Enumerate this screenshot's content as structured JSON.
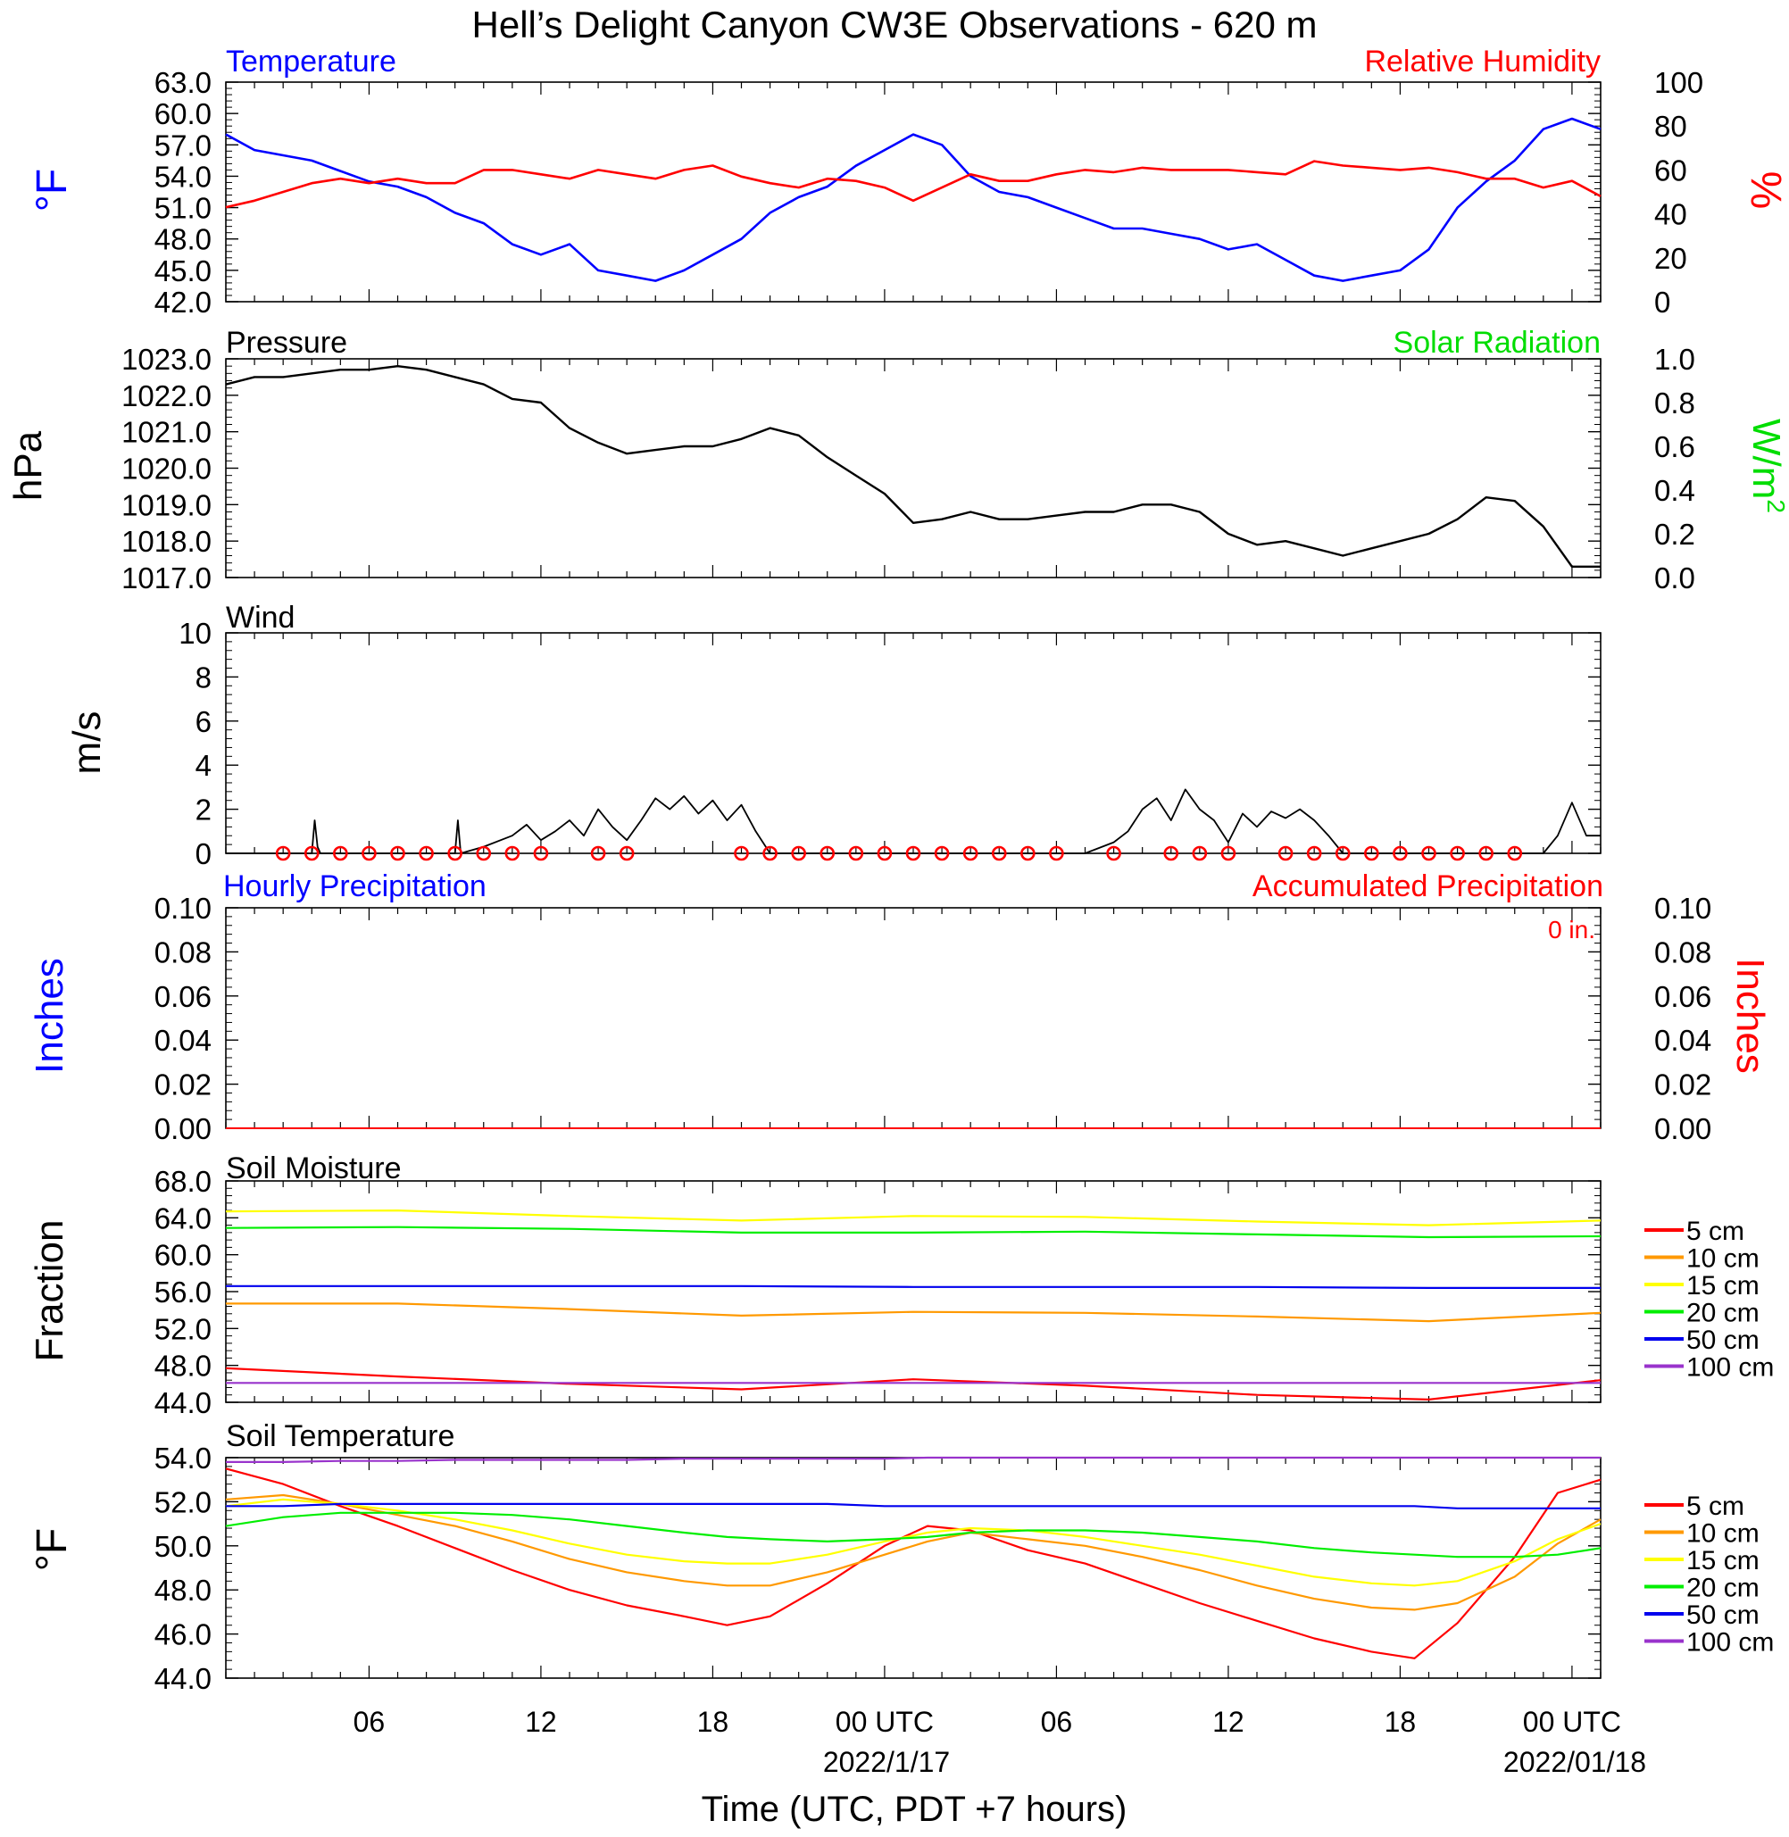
{
  "title": "Hell’s Delight Canyon CW3E Observations - 620 m",
  "x_axis": {
    "label": "Time (UTC, PDT +7 hours)",
    "ticks": [
      "06",
      "12",
      "18",
      "00 UTC",
      "06",
      "12",
      "18",
      "00 UTC"
    ],
    "dates": [
      "2022/1/17",
      "2022/01/18"
    ]
  },
  "colors": {
    "temperature": "#0000ff",
    "humidity": "#ff0000",
    "pressure": "#000000",
    "solar": "#00dd00",
    "wind": "#000000",
    "wind_barb": "#ff0000",
    "hourly_precip": "#0000ff",
    "accum_precip": "#ff0000",
    "depth_5cm": "#ff0000",
    "depth_10cm": "#ff9900",
    "depth_15cm": "#ffff00",
    "depth_20cm": "#00ee00",
    "depth_50cm": "#0000ee",
    "depth_100cm": "#9933cc"
  },
  "chart_data": [
    {
      "type": "line",
      "panel": "temperature_humidity",
      "left_title": "Temperature",
      "right_title": "Relative Humidity",
      "ylabel_left": "°F",
      "ylabel_right": "%",
      "yticks_left": [
        "63.0",
        "60.0",
        "57.0",
        "54.0",
        "51.0",
        "48.0",
        "45.0",
        "42.0"
      ],
      "yticks_right": [
        "100",
        "80",
        "60",
        "40",
        "20",
        "0"
      ],
      "ylim_left": [
        42,
        63
      ],
      "ylim_right": [
        0,
        100
      ],
      "x_hours": [
        0,
        1,
        2,
        3,
        4,
        5,
        6,
        7,
        8,
        9,
        10,
        11,
        12,
        13,
        14,
        15,
        16,
        17,
        18,
        19,
        20,
        21,
        22,
        23,
        24,
        25,
        26,
        27,
        28,
        29,
        30,
        31,
        32,
        33,
        34,
        35,
        36,
        37,
        38,
        39,
        40,
        41,
        42,
        43,
        44,
        45,
        46,
        47,
        48
      ],
      "series": [
        {
          "name": "Temperature",
          "axis": "left",
          "values": [
            58.0,
            56.5,
            56.0,
            55.5,
            54.5,
            53.5,
            53.0,
            52.0,
            50.5,
            49.5,
            47.5,
            46.5,
            47.5,
            45.0,
            44.5,
            44.0,
            45.0,
            46.5,
            48.0,
            50.5,
            52.0,
            53.0,
            55.0,
            56.5,
            58.0,
            57.0,
            54.0,
            52.5,
            52.0,
            51.0,
            50.0,
            49.0,
            49.0,
            48.5,
            48.0,
            47.0,
            47.5,
            46.0,
            44.5,
            44.0,
            44.5,
            45.0,
            47.0,
            51.0,
            53.5,
            55.5,
            58.5,
            59.5,
            58.5
          ]
        },
        {
          "name": "Relative Humidity",
          "axis": "right",
          "values": [
            43,
            46,
            50,
            54,
            56,
            54,
            56,
            54,
            54,
            60,
            60,
            58,
            56,
            60,
            58,
            56,
            60,
            62,
            57,
            54,
            52,
            56,
            55,
            52,
            46,
            52,
            58,
            55,
            55,
            58,
            60,
            59,
            61,
            60,
            60,
            60,
            59,
            58,
            64,
            62,
            61,
            60,
            61,
            59,
            56,
            56,
            52,
            55,
            48
          ]
        }
      ]
    },
    {
      "type": "line",
      "panel": "pressure_solar",
      "left_title": "Pressure",
      "right_title": "Solar Radiation",
      "ylabel_left": "hPa",
      "ylabel_right_main": "W/m",
      "ylabel_right_sup": "2",
      "yticks_left": [
        "1023.0",
        "1022.0",
        "1021.0",
        "1020.0",
        "1019.0",
        "1018.0",
        "1017.0"
      ],
      "yticks_right": [
        "1.0",
        "0.8",
        "0.6",
        "0.4",
        "0.2",
        "0.0"
      ],
      "ylim_left": [
        1017,
        1023
      ],
      "ylim_right": [
        0,
        1
      ],
      "x_hours": [
        0,
        1,
        2,
        3,
        4,
        5,
        6,
        7,
        8,
        9,
        10,
        11,
        12,
        13,
        14,
        15,
        16,
        17,
        18,
        19,
        20,
        21,
        22,
        23,
        24,
        25,
        26,
        27,
        28,
        29,
        30,
        31,
        32,
        33,
        34,
        35,
        36,
        37,
        38,
        39,
        40,
        41,
        42,
        43,
        44,
        45,
        46,
        47,
        48
      ],
      "series": [
        {
          "name": "Pressure",
          "axis": "left",
          "values": [
            1022.3,
            1022.5,
            1022.5,
            1022.6,
            1022.7,
            1022.7,
            1022.8,
            1022.7,
            1022.5,
            1022.3,
            1021.9,
            1021.8,
            1021.1,
            1020.7,
            1020.4,
            1020.5,
            1020.6,
            1020.6,
            1020.8,
            1021.1,
            1020.9,
            1020.3,
            1019.8,
            1019.3,
            1018.5,
            1018.6,
            1018.8,
            1018.6,
            1018.6,
            1018.7,
            1018.8,
            1018.8,
            1019.0,
            1019.0,
            1018.8,
            1018.2,
            1017.9,
            1018.0,
            1017.8,
            1017.6,
            1017.8,
            1018.0,
            1018.2,
            1018.6,
            1019.2,
            1019.1,
            1018.4,
            1017.3,
            1017.3
          ]
        }
      ]
    },
    {
      "type": "line",
      "panel": "wind",
      "left_title": "Wind",
      "ylabel_left": "m/s",
      "yticks_left": [
        "10",
        "8",
        "6",
        "4",
        "2",
        "0"
      ],
      "ylim_left": [
        0,
        10
      ],
      "series": [
        {
          "name": "Wind speed",
          "x_hours": [
            0,
            3,
            3.1,
            3.2,
            3.3,
            8,
            8.1,
            8.2,
            9,
            10,
            10.5,
            11,
            11.5,
            12,
            12.5,
            13,
            13.5,
            14,
            14.5,
            15,
            15.5,
            16,
            16.5,
            17,
            17.5,
            18,
            18.5,
            19,
            20,
            22,
            24,
            26,
            28,
            30,
            31,
            31.5,
            32,
            32.5,
            33,
            33.5,
            34,
            34.5,
            35,
            35.5,
            36,
            36.5,
            37,
            37.5,
            38,
            38.5,
            39,
            40,
            42,
            44,
            46,
            46.5,
            47,
            47.5,
            48
          ],
          "values": [
            0,
            0,
            1.5,
            0.3,
            0,
            0,
            1.5,
            0,
            0.3,
            0.8,
            1.3,
            0.6,
            1.0,
            1.5,
            0.8,
            2.0,
            1.2,
            0.6,
            1.5,
            2.5,
            2.0,
            2.6,
            1.8,
            2.4,
            1.5,
            2.2,
            1.0,
            0,
            0,
            0,
            0,
            0,
            0,
            0,
            0.5,
            1.0,
            2.0,
            2.5,
            1.5,
            2.9,
            2.0,
            1.5,
            0.5,
            1.8,
            1.2,
            1.9,
            1.6,
            2.0,
            1.5,
            0.8,
            0,
            0,
            0,
            0,
            0,
            0.8,
            2.3,
            0.8,
            0.8
          ]
        }
      ],
      "calm_marker_hours": [
        2,
        3,
        4,
        5,
        6,
        7,
        8,
        9,
        10,
        11,
        13,
        14,
        18,
        19,
        20,
        21,
        22,
        23,
        24,
        25,
        26,
        27,
        28,
        29,
        31,
        33,
        34,
        35,
        37,
        38,
        39,
        40,
        41,
        42,
        43,
        44,
        45
      ]
    },
    {
      "type": "line",
      "panel": "precipitation",
      "left_title": "Hourly Precipitation",
      "right_title": "Accumulated Precipitation",
      "annotation": "0 in.",
      "ylabel_left": "Inches",
      "ylabel_right": "Inches",
      "yticks_left": [
        "0.10",
        "0.08",
        "0.06",
        "0.04",
        "0.02",
        "0.00"
      ],
      "yticks_right": [
        "0.10",
        "0.08",
        "0.06",
        "0.04",
        "0.02",
        "0.00"
      ],
      "ylim_left": [
        0,
        0.1
      ],
      "ylim_right": [
        0,
        0.1
      ],
      "series": [
        {
          "name": "Hourly Precipitation",
          "x_hours": [
            0,
            48
          ],
          "values": [
            0,
            0
          ]
        },
        {
          "name": "Accumulated Precipitation",
          "x_hours": [
            0,
            48
          ],
          "values": [
            0,
            0
          ]
        }
      ]
    },
    {
      "type": "line",
      "panel": "soil_moisture",
      "left_title": "Soil Moisture",
      "ylabel_left": "Fraction",
      "yticks_left": [
        "68.0",
        "64.0",
        "60.0",
        "56.0",
        "52.0",
        "48.0",
        "44.0"
      ],
      "ylim_left": [
        44,
        68
      ],
      "legend": [
        "5 cm",
        "10 cm",
        "15 cm",
        "20 cm",
        "50 cm",
        "100 cm"
      ],
      "x_hours": [
        0,
        6,
        12,
        18,
        24,
        30,
        36,
        42,
        48
      ],
      "series": [
        {
          "name": "5 cm",
          "values": [
            47.7,
            46.8,
            46.0,
            45.4,
            46.5,
            45.8,
            44.8,
            44.3,
            46.4
          ]
        },
        {
          "name": "10 cm",
          "values": [
            54.7,
            54.7,
            54.1,
            53.4,
            53.8,
            53.7,
            53.3,
            52.8,
            53.7
          ]
        },
        {
          "name": "15 cm",
          "values": [
            64.7,
            64.8,
            64.2,
            63.7,
            64.2,
            64.1,
            63.6,
            63.2,
            63.7
          ]
        },
        {
          "name": "20 cm",
          "values": [
            62.9,
            63.0,
            62.8,
            62.4,
            62.4,
            62.5,
            62.2,
            61.9,
            62.0
          ]
        },
        {
          "name": "50 cm",
          "values": [
            56.6,
            56.6,
            56.6,
            56.6,
            56.5,
            56.5,
            56.5,
            56.4,
            56.4
          ]
        },
        {
          "name": "100 cm",
          "values": [
            46.1,
            46.1,
            46.1,
            46.1,
            46.1,
            46.1,
            46.1,
            46.1,
            46.1
          ]
        }
      ]
    },
    {
      "type": "line",
      "panel": "soil_temperature",
      "left_title": "Soil Temperature",
      "ylabel_left": "°F",
      "yticks_left": [
        "54.0",
        "52.0",
        "50.0",
        "48.0",
        "46.0",
        "44.0"
      ],
      "ylim_left": [
        44,
        54
      ],
      "legend": [
        "5 cm",
        "10 cm",
        "15 cm",
        "20 cm",
        "50 cm",
        "100 cm"
      ],
      "x_hours": [
        0,
        2,
        4,
        6,
        8,
        10,
        12,
        14,
        16,
        17.5,
        19,
        21,
        23,
        24.5,
        26,
        28,
        30,
        32,
        34,
        36,
        38,
        40,
        41.5,
        43,
        45,
        46.5,
        48
      ],
      "series": [
        {
          "name": "5 cm",
          "values": [
            53.5,
            52.8,
            51.8,
            50.9,
            49.9,
            48.9,
            48.0,
            47.3,
            46.8,
            46.4,
            46.8,
            48.3,
            50.0,
            50.9,
            50.7,
            49.8,
            49.2,
            48.3,
            47.4,
            46.6,
            45.8,
            45.2,
            44.9,
            46.5,
            49.5,
            52.4,
            53.0
          ]
        },
        {
          "name": "10 cm",
          "values": [
            52.1,
            52.3,
            51.9,
            51.4,
            50.9,
            50.2,
            49.4,
            48.8,
            48.4,
            48.2,
            48.2,
            48.8,
            49.6,
            50.2,
            50.6,
            50.3,
            50.0,
            49.5,
            48.9,
            48.2,
            47.6,
            47.2,
            47.1,
            47.4,
            48.6,
            50.1,
            51.2
          ]
        },
        {
          "name": "15 cm",
          "values": [
            51.8,
            52.1,
            51.9,
            51.6,
            51.2,
            50.7,
            50.1,
            49.6,
            49.3,
            49.2,
            49.2,
            49.6,
            50.2,
            50.6,
            50.8,
            50.7,
            50.4,
            50.0,
            49.6,
            49.1,
            48.6,
            48.3,
            48.2,
            48.4,
            49.3,
            50.3,
            51.0
          ]
        },
        {
          "name": "20 cm",
          "values": [
            50.9,
            51.3,
            51.5,
            51.5,
            51.5,
            51.4,
            51.2,
            50.9,
            50.6,
            50.4,
            50.3,
            50.2,
            50.3,
            50.4,
            50.6,
            50.7,
            50.7,
            50.6,
            50.4,
            50.2,
            49.9,
            49.7,
            49.6,
            49.5,
            49.5,
            49.6,
            49.9
          ]
        },
        {
          "name": "50 cm",
          "values": [
            51.8,
            51.8,
            51.9,
            51.9,
            51.9,
            51.9,
            51.9,
            51.9,
            51.9,
            51.9,
            51.9,
            51.9,
            51.8,
            51.8,
            51.8,
            51.8,
            51.8,
            51.8,
            51.8,
            51.8,
            51.8,
            51.8,
            51.8,
            51.7,
            51.7,
            51.7,
            51.7
          ]
        },
        {
          "name": "100 cm",
          "values": [
            53.8,
            53.8,
            53.85,
            53.85,
            53.9,
            53.9,
            53.9,
            53.9,
            53.95,
            53.95,
            53.95,
            53.95,
            53.95,
            54.0,
            54.0,
            54.0,
            54.0,
            54.0,
            54.0,
            54.0,
            54.0,
            54.0,
            54.0,
            54.0,
            54.0,
            54.0,
            54.0
          ]
        }
      ]
    }
  ]
}
